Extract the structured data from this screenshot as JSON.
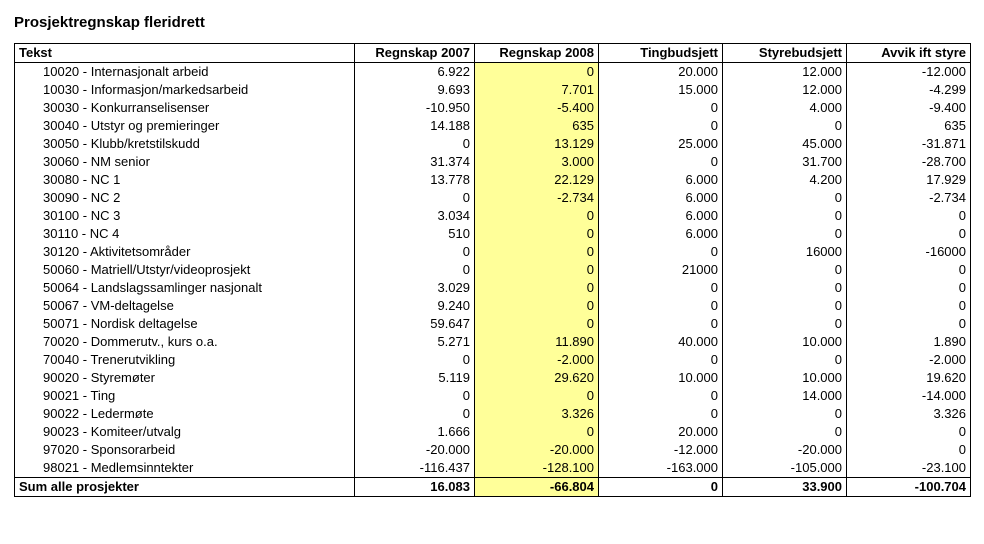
{
  "title": "Prosjektregnskap fleridrett",
  "table": {
    "columns": [
      "Tekst",
      "Regnskap 2007",
      "Regnskap 2008",
      "Tingbudsjett",
      "Styrebudsjett",
      "Avvik ift styre"
    ],
    "highlight_col_index": 2,
    "highlight_color": "#ffff99",
    "col_align": [
      "left",
      "right",
      "right",
      "right",
      "right",
      "right"
    ],
    "rows": [
      {
        "label": "10020 - Internasjonalt arbeid",
        "v": [
          "6.922",
          "0",
          "20.000",
          "12.000",
          "-12.000"
        ]
      },
      {
        "label": "10030 - Informasjon/markedsarbeid",
        "v": [
          "9.693",
          "7.701",
          "15.000",
          "12.000",
          "-4.299"
        ]
      },
      {
        "label": "30030 - Konkurranselisenser",
        "v": [
          "-10.950",
          "-5.400",
          "0",
          "4.000",
          "-9.400"
        ]
      },
      {
        "label": "30040 - Utstyr og premieringer",
        "v": [
          "14.188",
          "635",
          "0",
          "0",
          "635"
        ]
      },
      {
        "label": "30050 - Klubb/kretstilskudd",
        "v": [
          "0",
          "13.129",
          "25.000",
          "45.000",
          "-31.871"
        ]
      },
      {
        "label": "30060 - NM senior",
        "v": [
          "31.374",
          "3.000",
          "0",
          "31.700",
          "-28.700"
        ]
      },
      {
        "label": "30080 - NC 1",
        "v": [
          "13.778",
          "22.129",
          "6.000",
          "4.200",
          "17.929"
        ]
      },
      {
        "label": "30090 - NC 2",
        "v": [
          "0",
          "-2.734",
          "6.000",
          "0",
          "-2.734"
        ]
      },
      {
        "label": "30100 - NC 3",
        "v": [
          "3.034",
          "0",
          "6.000",
          "0",
          "0"
        ]
      },
      {
        "label": "30110 - NC 4",
        "v": [
          "510",
          "0",
          "6.000",
          "0",
          "0"
        ]
      },
      {
        "label": "30120 - Aktivitetsområder",
        "v": [
          "0",
          "0",
          "0",
          "16000",
          "-16000"
        ]
      },
      {
        "label": "50060 - Matriell/Utstyr/videoprosjekt",
        "v": [
          "0",
          "0",
          "21000",
          "0",
          "0"
        ]
      },
      {
        "label": "50064 - Landslagssamlinger nasjonalt",
        "v": [
          "3.029",
          "0",
          "0",
          "0",
          "0"
        ]
      },
      {
        "label": "50067 - VM-deltagelse",
        "v": [
          "9.240",
          "0",
          "0",
          "0",
          "0"
        ]
      },
      {
        "label": "50071 - Nordisk deltagelse",
        "v": [
          "59.647",
          "0",
          "0",
          "0",
          "0"
        ]
      },
      {
        "label": "70020 - Dommerutv., kurs o.a.",
        "v": [
          "5.271",
          "11.890",
          "40.000",
          "10.000",
          "1.890"
        ]
      },
      {
        "label": "70040 - Trenerutvikling",
        "v": [
          "0",
          "-2.000",
          "0",
          "0",
          "-2.000"
        ]
      },
      {
        "label": "90020 - Styremøter",
        "v": [
          "5.119",
          "29.620",
          "10.000",
          "10.000",
          "19.620"
        ]
      },
      {
        "label": "90021 - Ting",
        "v": [
          "0",
          "0",
          "0",
          "14.000",
          "-14.000"
        ]
      },
      {
        "label": "90022 - Ledermøte",
        "v": [
          "0",
          "3.326",
          "0",
          "0",
          "3.326"
        ]
      },
      {
        "label": "90023 - Komiteer/utvalg",
        "v": [
          "1.666",
          "0",
          "20.000",
          "0",
          "0"
        ]
      },
      {
        "label": "97020 - Sponsorarbeid",
        "v": [
          "-20.000",
          "-20.000",
          "-12.000",
          "-20.000",
          "0"
        ]
      },
      {
        "label": "98021 - Medlemsinntekter",
        "v": [
          "-116.437",
          "-128.100",
          "-163.000",
          "-105.000",
          "-23.100"
        ]
      }
    ],
    "sum_row": {
      "label": "Sum alle prosjekter",
      "v": [
        "16.083",
        "-66.804",
        "0",
        "33.900",
        "-100.704"
      ]
    }
  }
}
